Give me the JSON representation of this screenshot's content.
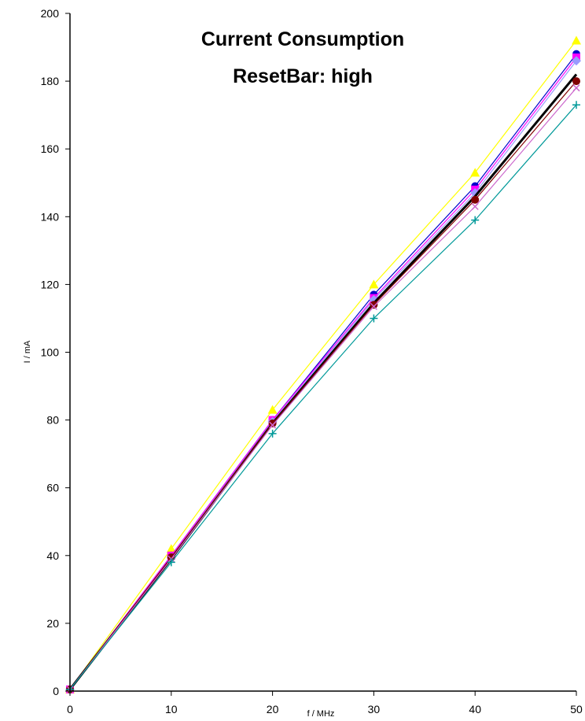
{
  "chart_data": {
    "type": "line",
    "title": "Current Consumption",
    "subtitle": "ResetBar: high",
    "xlabel": "f / MHz",
    "ylabel": "I / mA",
    "xlim": [
      0,
      50
    ],
    "ylim": [
      0,
      200
    ],
    "x_ticks": [
      "0",
      "10",
      "20",
      "30",
      "40",
      "50"
    ],
    "y_ticks": [
      "0",
      "20",
      "40",
      "60",
      "80",
      "100",
      "120",
      "140",
      "160",
      "180",
      "200"
    ],
    "grid": false,
    "legend": "none",
    "x": [
      0,
      10,
      20,
      30,
      40,
      50
    ],
    "series": [
      {
        "color": "#ffff00",
        "marker": "triangle",
        "values": [
          0.5,
          42,
          83,
          120,
          153,
          192
        ]
      },
      {
        "color": "#0000cc",
        "marker": "circle",
        "values": [
          0.5,
          40,
          80,
          117,
          149,
          188
        ]
      },
      {
        "color": "#ff00ff",
        "marker": "square",
        "values": [
          0.5,
          40,
          80,
          116,
          148,
          187
        ]
      },
      {
        "color": "#9999ff",
        "marker": "diamond",
        "values": [
          0.5,
          39.5,
          79.5,
          115.5,
          147,
          186
        ]
      },
      {
        "color": "#000000",
        "marker": "none",
        "bold": true,
        "values": [
          0.5,
          39,
          79,
          114.5,
          146,
          182
        ]
      },
      {
        "color": "#800000",
        "marker": "circle",
        "values": [
          0.5,
          39.5,
          79,
          114,
          145,
          180
        ]
      },
      {
        "color": "#cc66cc",
        "marker": "x",
        "values": [
          0.5,
          39,
          78.5,
          113.5,
          143,
          178
        ]
      },
      {
        "color": "#009999",
        "marker": "plus",
        "values": [
          0.5,
          38,
          76,
          110,
          139,
          173
        ]
      }
    ]
  }
}
